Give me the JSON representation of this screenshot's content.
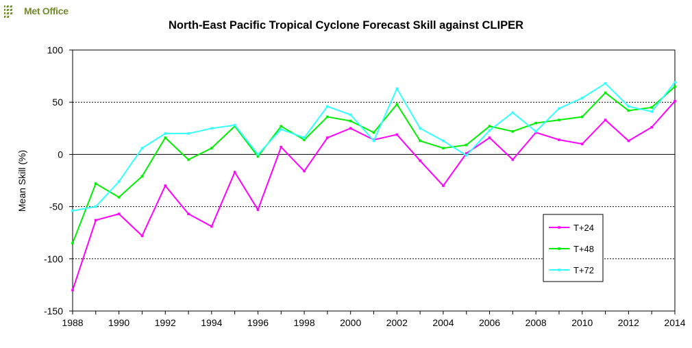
{
  "logo": {
    "text": "Met Office",
    "color": "#6f8b2a"
  },
  "chart_data": {
    "type": "line",
    "title": "North-East Pacific Tropical Cyclone Forecast Skill against CLIPER",
    "xlabel": "",
    "ylabel": "Mean Skill (%)",
    "xlim": [
      1988,
      2014
    ],
    "ylim": [
      -150,
      100
    ],
    "x_ticks": [
      1988,
      1990,
      1992,
      1994,
      1996,
      1998,
      2000,
      2002,
      2004,
      2006,
      2008,
      2010,
      2012,
      2014
    ],
    "y_ticks": [
      -150,
      -100,
      -50,
      0,
      50,
      100
    ],
    "grid": "horizontal dashed at -100, -50, 0, 50",
    "legend_position": "right",
    "x": [
      1988,
      1989,
      1990,
      1991,
      1992,
      1993,
      1994,
      1995,
      1996,
      1997,
      1998,
      1999,
      2000,
      2001,
      2002,
      2003,
      2004,
      2005,
      2006,
      2007,
      2008,
      2009,
      2010,
      2011,
      2012,
      2013,
      2014
    ],
    "series": [
      {
        "name": "T+24",
        "color": "#ff00ff",
        "values": [
          -130,
          -63,
          -57,
          -78,
          -30,
          -57,
          -69,
          -17,
          -53,
          7,
          -16,
          16,
          25,
          14,
          19,
          -6,
          -30,
          1,
          16,
          -5,
          21,
          14,
          10,
          33,
          13,
          26,
          51
        ]
      },
      {
        "name": "T+48",
        "color": "#00ee00",
        "values": [
          -85,
          -28,
          -41,
          -21,
          16,
          -5,
          6,
          27,
          -2,
          27,
          14,
          36,
          32,
          21,
          48,
          13,
          6,
          9,
          27,
          22,
          30,
          33,
          36,
          59,
          42,
          45,
          65
        ]
      },
      {
        "name": "T+72",
        "color": "#33ffff",
        "values": [
          -54,
          -50,
          -26,
          6,
          20,
          20,
          25,
          28,
          0,
          24,
          16,
          46,
          38,
          13,
          63,
          25,
          13,
          -1,
          23,
          40,
          22,
          44,
          54,
          68,
          46,
          41,
          69
        ]
      }
    ]
  }
}
